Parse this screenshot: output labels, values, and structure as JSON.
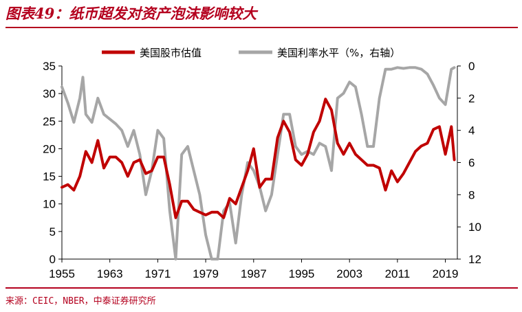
{
  "header": {
    "title": "图表49：纸币超发对资产泡沫影响较大"
  },
  "footer": {
    "source": "来源：CEIC，NBER，中泰证券研究所"
  },
  "colors": {
    "brand": "#b4001e",
    "valuation_line": "#c00000",
    "rate_line": "#a6a6a6"
  },
  "chart_data": {
    "type": "line",
    "title": "图表49：纸币超发对资产泡沫影响较大",
    "xlim": [
      1955,
      2021
    ],
    "x_ticks": [
      "1955",
      "1963",
      "1971",
      "1979",
      "1987",
      "1995",
      "2003",
      "2011",
      "2019"
    ],
    "y_left": {
      "lim": [
        0,
        35
      ],
      "ticks": [
        "0",
        "5",
        "10",
        "15",
        "20",
        "25",
        "30",
        "35"
      ]
    },
    "y_right": {
      "lim": [
        12,
        0
      ],
      "inverted": true,
      "ticks": [
        "0",
        "2",
        "4",
        "6",
        "8",
        "10",
        "12"
      ]
    },
    "legend_position": "top-center",
    "series": [
      {
        "name": "美国股市估值",
        "axis": "left",
        "color": "#c00000",
        "points": [
          [
            1955.0,
            13.0
          ],
          [
            1956.0,
            13.5
          ],
          [
            1957.0,
            12.5
          ],
          [
            1958.0,
            15.0
          ],
          [
            1959.0,
            19.5
          ],
          [
            1960.0,
            17.5
          ],
          [
            1961.0,
            21.5
          ],
          [
            1962.0,
            16.5
          ],
          [
            1963.0,
            18.5
          ],
          [
            1964.0,
            18.5
          ],
          [
            1965.0,
            17.5
          ],
          [
            1966.0,
            15.0
          ],
          [
            1967.0,
            17.5
          ],
          [
            1968.0,
            18.0
          ],
          [
            1969.0,
            15.5
          ],
          [
            1970.0,
            16.0
          ],
          [
            1971.0,
            18.5
          ],
          [
            1972.0,
            18.5
          ],
          [
            1973.0,
            13.5
          ],
          [
            1974.0,
            7.5
          ],
          [
            1975.0,
            10.5
          ],
          [
            1976.0,
            10.5
          ],
          [
            1977.0,
            9.0
          ],
          [
            1978.0,
            8.5
          ],
          [
            1979.0,
            8.0
          ],
          [
            1980.0,
            8.5
          ],
          [
            1981.0,
            8.5
          ],
          [
            1982.0,
            7.5
          ],
          [
            1983.0,
            11.0
          ],
          [
            1984.0,
            10.0
          ],
          [
            1985.0,
            13.0
          ],
          [
            1986.0,
            16.0
          ],
          [
            1987.0,
            20.0
          ],
          [
            1988.0,
            13.0
          ],
          [
            1989.0,
            14.5
          ],
          [
            1990.0,
            14.5
          ],
          [
            1991.0,
            22.0
          ],
          [
            1992.0,
            25.0
          ],
          [
            1993.0,
            23.0
          ],
          [
            1994.0,
            18.0
          ],
          [
            1995.0,
            17.0
          ],
          [
            1996.0,
            19.0
          ],
          [
            1997.0,
            23.0
          ],
          [
            1998.0,
            25.0
          ],
          [
            1999.0,
            29.0
          ],
          [
            2000.0,
            27.0
          ],
          [
            2001.0,
            21.0
          ],
          [
            2002.0,
            19.0
          ],
          [
            2003.0,
            21.0
          ],
          [
            2004.0,
            19.0
          ],
          [
            2005.0,
            18.0
          ],
          [
            2006.0,
            17.0
          ],
          [
            2007.0,
            17.0
          ],
          [
            2008.0,
            16.5
          ],
          [
            2009.0,
            12.5
          ],
          [
            2010.0,
            16.0
          ],
          [
            2011.0,
            14.0
          ],
          [
            2012.0,
            15.5
          ],
          [
            2013.0,
            17.5
          ],
          [
            2014.0,
            19.5
          ],
          [
            2015.0,
            20.5
          ],
          [
            2016.0,
            21.0
          ],
          [
            2017.0,
            23.5
          ],
          [
            2018.0,
            24.0
          ],
          [
            2019.0,
            19.0
          ],
          [
            2020.0,
            24.0
          ],
          [
            2020.5,
            18.0
          ]
        ]
      },
      {
        "name": "美国利率水平（%，右轴）",
        "axis": "right",
        "color": "#a6a6a6",
        "points": [
          [
            1955.0,
            1.3
          ],
          [
            1956.0,
            2.3
          ],
          [
            1957.0,
            3.5
          ],
          [
            1958.0,
            2.0
          ],
          [
            1958.5,
            0.7
          ],
          [
            1959.0,
            3.0
          ],
          [
            1960.0,
            3.5
          ],
          [
            1961.0,
            2.0
          ],
          [
            1962.0,
            3.0
          ],
          [
            1963.0,
            3.3
          ],
          [
            1964.0,
            3.6
          ],
          [
            1965.0,
            4.0
          ],
          [
            1966.0,
            5.0
          ],
          [
            1967.0,
            4.0
          ],
          [
            1968.0,
            5.5
          ],
          [
            1969.0,
            8.0
          ],
          [
            1970.0,
            6.5
          ],
          [
            1971.0,
            4.0
          ],
          [
            1972.0,
            4.5
          ],
          [
            1973.0,
            9.0
          ],
          [
            1974.0,
            12.0
          ],
          [
            1975.0,
            5.5
          ],
          [
            1976.0,
            5.0
          ],
          [
            1977.0,
            6.5
          ],
          [
            1978.0,
            8.0
          ],
          [
            1979.0,
            10.5
          ],
          [
            1980.0,
            12.0
          ],
          [
            1981.0,
            12.0
          ],
          [
            1982.0,
            9.0
          ],
          [
            1983.0,
            8.5
          ],
          [
            1984.0,
            11.0
          ],
          [
            1985.0,
            8.0
          ],
          [
            1986.0,
            6.0
          ],
          [
            1987.0,
            6.5
          ],
          [
            1988.0,
            7.5
          ],
          [
            1989.0,
            9.0
          ],
          [
            1990.0,
            8.0
          ],
          [
            1991.0,
            5.5
          ],
          [
            1992.0,
            3.0
          ],
          [
            1993.0,
            3.0
          ],
          [
            1994.0,
            5.0
          ],
          [
            1995.0,
            5.5
          ],
          [
            1996.0,
            5.3
          ],
          [
            1997.0,
            5.5
          ],
          [
            1998.0,
            4.8
          ],
          [
            1999.0,
            5.0
          ],
          [
            2000.0,
            6.5
          ],
          [
            2001.0,
            2.0
          ],
          [
            2002.0,
            1.7
          ],
          [
            2003.0,
            1.0
          ],
          [
            2004.0,
            1.3
          ],
          [
            2005.0,
            3.0
          ],
          [
            2006.0,
            5.0
          ],
          [
            2007.0,
            5.0
          ],
          [
            2008.0,
            2.0
          ],
          [
            2009.0,
            0.2
          ],
          [
            2010.0,
            0.2
          ],
          [
            2011.0,
            0.1
          ],
          [
            2012.0,
            0.15
          ],
          [
            2013.0,
            0.1
          ],
          [
            2014.0,
            0.1
          ],
          [
            2015.0,
            0.2
          ],
          [
            2016.0,
            0.5
          ],
          [
            2017.0,
            1.2
          ],
          [
            2018.0,
            2.0
          ],
          [
            2019.0,
            2.4
          ],
          [
            2020.0,
            0.2
          ],
          [
            2020.5,
            0.1
          ]
        ]
      }
    ]
  }
}
